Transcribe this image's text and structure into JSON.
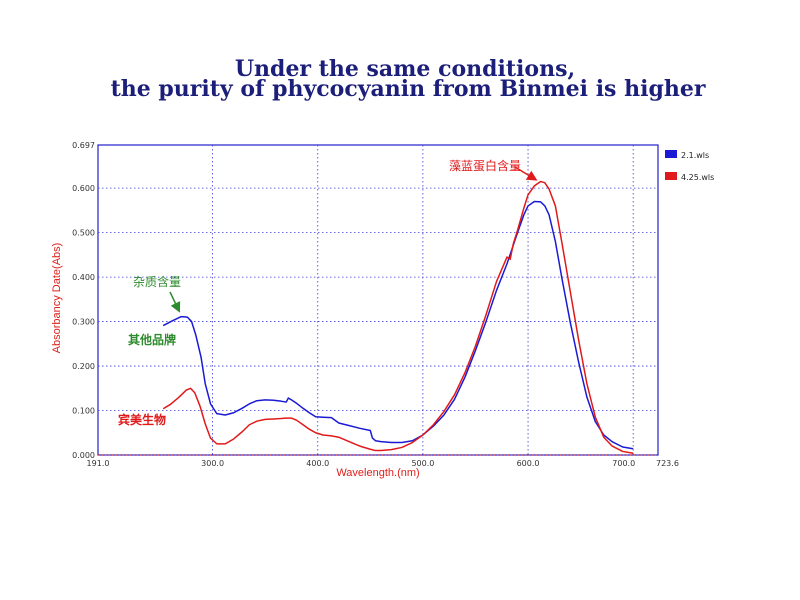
{
  "title": {
    "line1": "Under the same conditions,",
    "line2": "the purity of phycocyanin from Binmei is higher"
  },
  "chart_data": {
    "type": "line",
    "xlabel": "Wavelength.(nm)",
    "ylabel": "Absorbancy Date(Abs)",
    "xlim": [
      191.0,
      723.6
    ],
    "ylim": [
      0.0,
      0.697
    ],
    "x_ticks": [
      {
        "value": 191.0,
        "label": "191.0"
      },
      {
        "value": 300.0,
        "label": "300.0"
      },
      {
        "value": 400.0,
        "label": "400.0"
      },
      {
        "value": 500.0,
        "label": "500.0"
      },
      {
        "value": 600.0,
        "label": "600.0"
      },
      {
        "value": 700.0,
        "label": "700.0"
      },
      {
        "value": 723.6,
        "label": "723.6"
      }
    ],
    "y_ticks": [
      {
        "value": 0.0,
        "label": "0.000"
      },
      {
        "value": 0.1,
        "label": "0.100"
      },
      {
        "value": 0.2,
        "label": "0.200"
      },
      {
        "value": 0.3,
        "label": "0.300"
      },
      {
        "value": 0.4,
        "label": "0.400"
      },
      {
        "value": 0.5,
        "label": "0.500"
      },
      {
        "value": 0.6,
        "label": "0.600"
      },
      {
        "value": 0.697,
        "label": "0.697"
      }
    ],
    "grid": true,
    "legend_position": "right",
    "series": [
      {
        "name": "2.1.wls",
        "color": "#1a1ad6",
        "x": [
          253,
          262,
          270,
          276,
          280,
          284,
          289,
          293,
          298,
          304,
          312,
          320,
          328,
          335,
          342,
          350,
          358,
          365,
          370,
          372,
          375,
          380,
          386,
          392,
          398,
          405,
          413,
          420,
          430,
          440,
          450,
          452,
          455,
          460,
          470,
          480,
          490,
          500,
          510,
          520,
          530,
          540,
          550,
          560,
          570,
          580,
          585,
          590,
          596,
          600,
          606,
          612,
          616,
          620,
          626,
          632,
          640,
          648,
          656,
          664,
          672,
          680,
          690,
          700
        ],
        "y": [
          0.291,
          0.302,
          0.311,
          0.31,
          0.3,
          0.27,
          0.22,
          0.16,
          0.115,
          0.093,
          0.09,
          0.095,
          0.105,
          0.115,
          0.122,
          0.124,
          0.123,
          0.121,
          0.119,
          0.128,
          0.124,
          0.116,
          0.105,
          0.095,
          0.086,
          0.085,
          0.084,
          0.072,
          0.066,
          0.06,
          0.055,
          0.038,
          0.032,
          0.03,
          0.028,
          0.028,
          0.032,
          0.045,
          0.065,
          0.09,
          0.125,
          0.175,
          0.235,
          0.3,
          0.37,
          0.43,
          0.465,
          0.5,
          0.54,
          0.56,
          0.57,
          0.569,
          0.56,
          0.54,
          0.48,
          0.4,
          0.3,
          0.21,
          0.13,
          0.075,
          0.045,
          0.03,
          0.018,
          0.014
        ]
      },
      {
        "name": "4.25.wls",
        "color": "#e01a1a",
        "x": [
          253,
          260,
          268,
          275,
          279,
          283,
          288,
          293,
          298,
          304,
          312,
          320,
          328,
          335,
          342,
          350,
          358,
          365,
          370,
          375,
          380,
          386,
          392,
          398,
          405,
          413,
          420,
          430,
          440,
          450,
          455,
          460,
          470,
          480,
          490,
          500,
          510,
          520,
          530,
          540,
          550,
          560,
          570,
          580,
          583,
          586,
          590,
          596,
          600,
          606,
          612,
          616,
          620,
          626,
          632,
          640,
          648,
          656,
          664,
          672,
          680,
          690,
          700
        ],
        "y": [
          0.104,
          0.114,
          0.13,
          0.146,
          0.15,
          0.14,
          0.11,
          0.07,
          0.038,
          0.025,
          0.025,
          0.036,
          0.052,
          0.068,
          0.076,
          0.08,
          0.081,
          0.082,
          0.083,
          0.083,
          0.078,
          0.068,
          0.058,
          0.05,
          0.045,
          0.043,
          0.04,
          0.03,
          0.02,
          0.013,
          0.01,
          0.01,
          0.012,
          0.017,
          0.028,
          0.045,
          0.068,
          0.098,
          0.135,
          0.185,
          0.245,
          0.315,
          0.39,
          0.445,
          0.44,
          0.475,
          0.505,
          0.555,
          0.585,
          0.605,
          0.615,
          0.612,
          0.598,
          0.56,
          0.48,
          0.37,
          0.26,
          0.16,
          0.085,
          0.04,
          0.02,
          0.008,
          0.004
        ]
      }
    ],
    "annotations": [
      {
        "text": "藻蓝蛋白含量",
        "color": "#e01a1a",
        "arrow_to": [
          613,
          0.617
        ]
      },
      {
        "text": "杂质含量",
        "color": "#2e8b2e",
        "arrow_to": [
          270,
          0.315
        ]
      },
      {
        "text": "其他品牌",
        "color": "#2e8b2e"
      },
      {
        "text": "宾美生物",
        "color": "#e01a1a"
      }
    ]
  }
}
